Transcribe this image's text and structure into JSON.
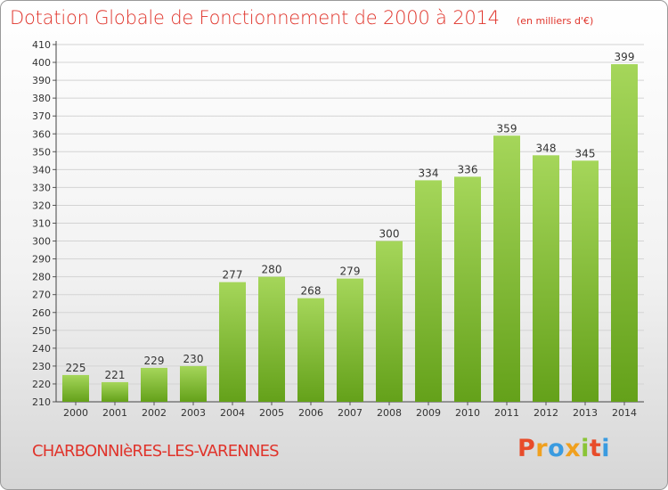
{
  "header": {
    "title": "Dotation Globale de Fonctionnement de 2000 à 2014",
    "subtitle": "(en milliers d'€)"
  },
  "footer": {
    "commune": "CHARBONNIèRES-LES-VARENNES",
    "logo_text": "Proxiti"
  },
  "colors": {
    "bar_light": "#a5d65a",
    "bar_dark": "#64a11a",
    "title": "#e0342b",
    "grid": "#d3d3d3"
  },
  "chart_data": {
    "type": "bar",
    "title": "Dotation Globale de Fonctionnement de 2000 à 2014",
    "subtitle": "(en milliers d'€)",
    "categories": [
      "2000",
      "2001",
      "2002",
      "2003",
      "2004",
      "2005",
      "2006",
      "2007",
      "2008",
      "2009",
      "2010",
      "2011",
      "2012",
      "2013",
      "2014"
    ],
    "values": [
      225,
      221,
      229,
      230,
      277,
      280,
      268,
      279,
      300,
      334,
      336,
      359,
      348,
      345,
      399
    ],
    "ylim": [
      210,
      410
    ],
    "ytick_step": 10,
    "grid": true,
    "xlabel": "",
    "ylabel": ""
  }
}
